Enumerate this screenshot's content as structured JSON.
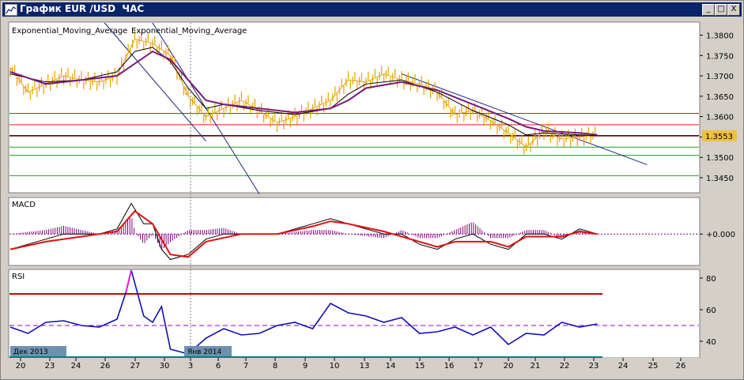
{
  "window": {
    "title": "График EUR /USD  ЧАС",
    "buttons": [
      "_",
      "□",
      "X"
    ]
  },
  "chart_data": [
    {
      "type": "line",
      "pane": "price",
      "indicator_labels": [
        "Exponential_Moving_Average",
        "Exponential_Moving_Average"
      ],
      "y_ticks": [
        "1.3800",
        "1.3750",
        "1.3700",
        "1.3650",
        "1.3600",
        "1.3550",
        "1.3500",
        "1.3450"
      ],
      "ylim": [
        1.3415,
        1.383
      ],
      "current_price_label": "1.3553",
      "price_series": [
        [
          0,
          1.372
        ],
        [
          1,
          1.366
        ],
        [
          2,
          1.368
        ],
        [
          3,
          1.37
        ],
        [
          4,
          1.369
        ],
        [
          5,
          1.3685
        ],
        [
          6,
          1.37
        ],
        [
          7,
          1.379
        ],
        [
          8,
          1.378
        ],
        [
          9,
          1.375
        ],
        [
          10,
          1.365
        ],
        [
          11,
          1.36
        ],
        [
          12,
          1.362
        ],
        [
          13,
          1.364
        ],
        [
          14,
          1.3615
        ],
        [
          15,
          1.3585
        ],
        [
          16,
          1.36
        ],
        [
          17,
          1.362
        ],
        [
          18,
          1.364
        ],
        [
          19,
          1.369
        ],
        [
          20,
          1.3685
        ],
        [
          21,
          1.3705
        ],
        [
          22,
          1.369
        ],
        [
          23,
          1.368
        ],
        [
          24,
          1.366
        ],
        [
          25,
          1.3605
        ],
        [
          26,
          1.3615
        ],
        [
          27,
          1.359
        ],
        [
          28,
          1.356
        ],
        [
          29,
          1.3525
        ],
        [
          30,
          1.3565
        ],
        [
          31,
          1.3545
        ],
        [
          32,
          1.355
        ],
        [
          33,
          1.3555
        ]
      ],
      "ema_purple": [
        [
          0,
          1.371
        ],
        [
          2,
          1.368
        ],
        [
          4,
          1.369
        ],
        [
          6,
          1.37
        ],
        [
          7,
          1.373
        ],
        [
          8,
          1.376
        ],
        [
          9,
          1.374
        ],
        [
          10,
          1.369
        ],
        [
          11,
          1.364
        ],
        [
          12,
          1.363
        ],
        [
          14,
          1.362
        ],
        [
          16,
          1.361
        ],
        [
          18,
          1.362
        ],
        [
          19,
          1.364
        ],
        [
          20,
          1.367
        ],
        [
          22,
          1.3685
        ],
        [
          24,
          1.3665
        ],
        [
          26,
          1.363
        ],
        [
          28,
          1.3595
        ],
        [
          29,
          1.3575
        ],
        [
          30,
          1.3565
        ],
        [
          32,
          1.356
        ],
        [
          33,
          1.3555
        ]
      ],
      "ema_black": [
        [
          0,
          1.3705
        ],
        [
          2,
          1.3685
        ],
        [
          4,
          1.369
        ],
        [
          6,
          1.371
        ],
        [
          7,
          1.376
        ],
        [
          8,
          1.377
        ],
        [
          9,
          1.3735
        ],
        [
          10,
          1.367
        ],
        [
          11,
          1.362
        ],
        [
          12,
          1.363
        ],
        [
          14,
          1.3615
        ],
        [
          16,
          1.3605
        ],
        [
          18,
          1.362
        ],
        [
          19,
          1.3655
        ],
        [
          20,
          1.368
        ],
        [
          22,
          1.369
        ],
        [
          24,
          1.366
        ],
        [
          26,
          1.3615
        ],
        [
          28,
          1.358
        ],
        [
          29,
          1.3555
        ],
        [
          30,
          1.356
        ],
        [
          32,
          1.3555
        ],
        [
          33,
          1.3553
        ]
      ],
      "horizontal_levels": [
        {
          "value": 1.3608,
          "color": "#d02020"
        },
        {
          "value": 1.358,
          "color": "#d02020"
        },
        {
          "value": 1.3553,
          "color": "#5a0000"
        },
        {
          "value": 1.3525,
          "color": "#20a020"
        },
        {
          "value": 1.3505,
          "color": "#20a020"
        },
        {
          "value": 1.3455,
          "color": "#20a020"
        }
      ],
      "trendlines": [
        {
          "from": [
            5.3,
            1.383
          ],
          "to": [
            11.0,
            1.354
          ],
          "color": "#1a237e"
        },
        {
          "from": [
            8.0,
            1.383
          ],
          "to": [
            14.0,
            1.341
          ],
          "color": "#1a237e"
        },
        {
          "from": [
            22.0,
            1.3705
          ],
          "to": [
            35.8,
            1.3482
          ],
          "color": "#1a237e"
        }
      ]
    },
    {
      "type": "line",
      "pane": "macd",
      "label": "MACD",
      "y_ticks": [
        "+0.000"
      ],
      "ylim": [
        -0.006,
        0.007
      ],
      "macd_line": [
        [
          0,
          -0.003
        ],
        [
          1,
          -0.002
        ],
        [
          2,
          -0.001
        ],
        [
          3,
          0.0
        ],
        [
          4,
          0.0
        ],
        [
          5,
          0.0
        ],
        [
          6,
          0.001
        ],
        [
          6.8,
          0.006
        ],
        [
          7.5,
          0.002
        ],
        [
          8,
          0.002
        ],
        [
          8.5,
          -0.003
        ],
        [
          9,
          -0.005
        ],
        [
          10,
          -0.004
        ],
        [
          11,
          -0.001
        ],
        [
          12,
          0.0
        ],
        [
          13,
          0.0
        ],
        [
          14,
          0.0
        ],
        [
          15,
          0.0
        ],
        [
          16,
          0.001
        ],
        [
          17,
          0.002
        ],
        [
          18,
          0.003
        ],
        [
          19,
          0.002
        ],
        [
          20,
          0.001
        ],
        [
          21,
          0.0
        ],
        [
          22,
          0.0
        ],
        [
          23,
          -0.002
        ],
        [
          24,
          -0.003
        ],
        [
          25,
          -0.001
        ],
        [
          26,
          0.0
        ],
        [
          27,
          -0.002
        ],
        [
          28,
          -0.003
        ],
        [
          29,
          0.0
        ],
        [
          30,
          0.0
        ],
        [
          31,
          -0.001
        ],
        [
          32,
          0.001
        ],
        [
          33,
          0.0
        ]
      ],
      "signal_line": [
        [
          0,
          -0.003
        ],
        [
          2,
          -0.0015
        ],
        [
          4,
          -0.0005
        ],
        [
          6,
          0.0005
        ],
        [
          7,
          0.0045
        ],
        [
          8,
          0.002
        ],
        [
          9,
          -0.004
        ],
        [
          10,
          -0.0045
        ],
        [
          11,
          -0.0015
        ],
        [
          13,
          0.0
        ],
        [
          15,
          0.0
        ],
        [
          17,
          0.0015
        ],
        [
          18,
          0.0025
        ],
        [
          19,
          0.002
        ],
        [
          21,
          0.0005
        ],
        [
          23,
          -0.0015
        ],
        [
          24,
          -0.0025
        ],
        [
          25,
          -0.0015
        ],
        [
          27,
          -0.0015
        ],
        [
          28,
          -0.0025
        ],
        [
          29,
          -0.0005
        ],
        [
          31,
          -0.0005
        ],
        [
          32,
          0.0005
        ],
        [
          33,
          0.0
        ]
      ]
    },
    {
      "type": "line",
      "pane": "rsi",
      "label": "RSI",
      "y_ticks": [
        "80",
        "60",
        "40"
      ],
      "ylim": [
        30,
        85
      ],
      "levels": [
        {
          "value": 70,
          "color": "#d00000"
        },
        {
          "value": 50,
          "color": "#8000ff",
          "dashed": true
        },
        {
          "value": 30,
          "color": "#008080"
        }
      ],
      "rsi_values": [
        [
          0,
          49
        ],
        [
          1,
          45
        ],
        [
          2,
          52
        ],
        [
          3,
          53
        ],
        [
          4,
          50
        ],
        [
          5,
          49
        ],
        [
          6,
          54
        ],
        [
          6.5,
          71
        ],
        [
          6.8,
          85
        ],
        [
          7.5,
          56
        ],
        [
          8,
          52
        ],
        [
          8.5,
          62
        ],
        [
          9,
          35
        ],
        [
          10,
          32
        ],
        [
          11,
          42
        ],
        [
          12,
          48
        ],
        [
          13,
          44
        ],
        [
          14,
          45
        ],
        [
          15,
          50
        ],
        [
          16,
          52
        ],
        [
          17,
          48
        ],
        [
          18,
          64
        ],
        [
          19,
          58
        ],
        [
          20,
          56
        ],
        [
          21,
          52
        ],
        [
          22,
          55
        ],
        [
          23,
          45
        ],
        [
          24,
          46
        ],
        [
          25,
          49
        ],
        [
          26,
          44
        ],
        [
          27,
          49
        ],
        [
          28,
          38
        ],
        [
          29,
          45
        ],
        [
          30,
          44
        ],
        [
          31,
          52
        ],
        [
          32,
          49
        ],
        [
          33,
          51
        ]
      ]
    }
  ],
  "x_axis": {
    "ticks": [
      "20",
      "23",
      "24",
      "26",
      "27",
      "30",
      "3",
      "6",
      "7",
      "8",
      "9",
      "10",
      "13",
      "14",
      "15",
      "16",
      "17",
      "20",
      "21",
      "22",
      "23",
      "24",
      "25",
      "26"
    ],
    "month_labels": [
      "Дек 2013",
      "Янв 2014"
    ]
  }
}
